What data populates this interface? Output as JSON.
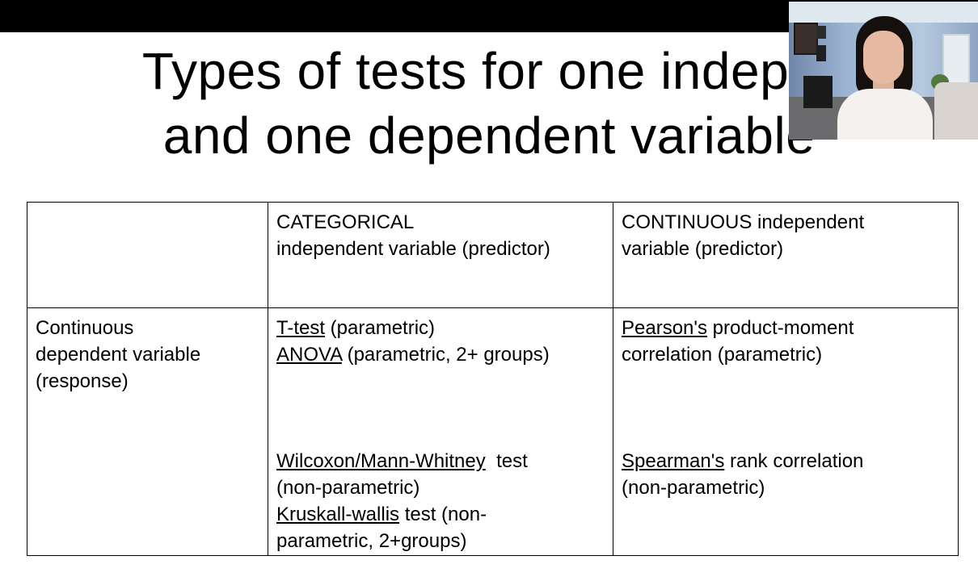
{
  "title": {
    "line1": "Types of tests for one indeper",
    "line2": "and one dependent variable"
  },
  "table": {
    "header": {
      "col2_line1": "CATEGORICAL",
      "col2_line2": "independent variable (predictor)",
      "col3_line1": "CONTINUOUS independent",
      "col3_line2": "variable (predictor)"
    },
    "row": {
      "label_line1": "Continuous",
      "label_line2": "dependent variable",
      "label_line3": "(response)",
      "categorical": {
        "ttest_name": "T-test",
        "ttest_note": " (parametric)",
        "anova_name": "ANOVA",
        "anova_note": " (parametric, 2+ groups)",
        "wilcoxon_name": "Wilcoxon/Mann-Whitney",
        "wilcoxon_note": "  test",
        "wilcoxon_note2": "(non-parametric)",
        "kruskal_name": "Kruskall-wallis",
        "kruskal_note": " test (non-",
        "kruskal_note2": "parametric, 2+groups)"
      },
      "continuous": {
        "pearson_name": "Pearson's",
        "pearson_note": " product-moment",
        "pearson_note2": "correlation (parametric)",
        "spearman_name": "Spearman's",
        "spearman_note": " rank correlation",
        "spearman_note2": "(non-parametric)"
      }
    }
  }
}
